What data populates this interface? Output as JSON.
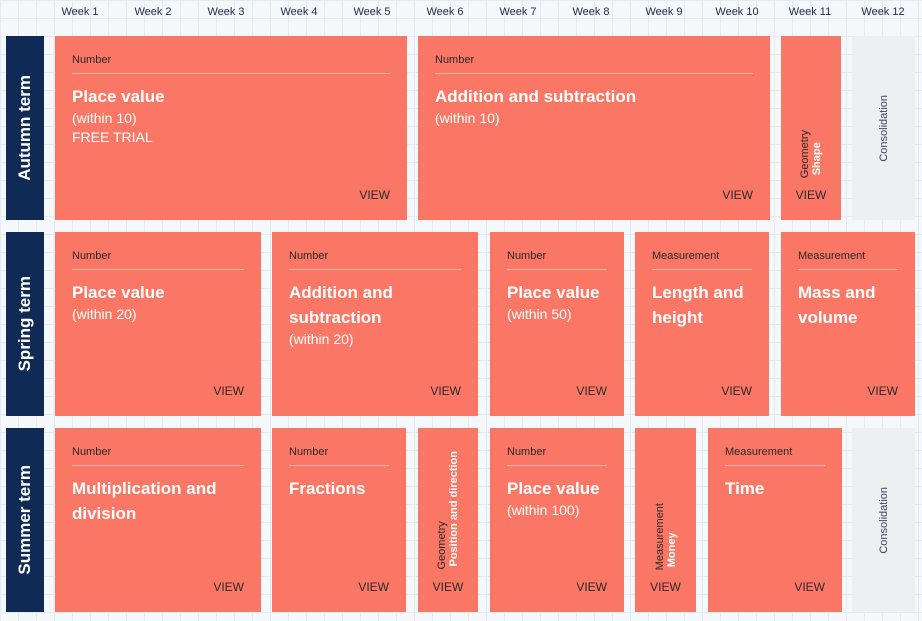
{
  "weeks": [
    "Week 1",
    "Week 2",
    "Week 3",
    "Week 4",
    "Week 5",
    "Week 6",
    "Week 7",
    "Week 8",
    "Week 9",
    "Week 10",
    "Week 11",
    "Week 12"
  ],
  "terms": {
    "autumn": "Autumn term",
    "spring": "Spring term",
    "summer": "Summer term"
  },
  "view_label": "VIEW",
  "consolidation_label": "Consolidation",
  "autumn": {
    "b1": {
      "category": "Number",
      "title": "Place value",
      "subtitle": "(within 10)",
      "note": "FREE TRIAL"
    },
    "b2": {
      "category": "Number",
      "title": "Addition and subtraction",
      "subtitle": "(within 10)"
    },
    "b3": {
      "category": "Geometry",
      "title": "Shape"
    }
  },
  "spring": {
    "b1": {
      "category": "Number",
      "title": "Place value",
      "subtitle": "(within 20)"
    },
    "b2": {
      "category": "Number",
      "title": "Addition and subtraction",
      "subtitle": "(within 20)"
    },
    "b3": {
      "category": "Number",
      "title": "Place value",
      "subtitle": "(within 50)"
    },
    "b4": {
      "category": "Measurement",
      "title": "Length and height"
    },
    "b5": {
      "category": "Measurement",
      "title": "Mass and volume"
    }
  },
  "summer": {
    "b1": {
      "category": "Number",
      "title": "Multiplication and division"
    },
    "b2": {
      "category": "Number",
      "title": "Fractions"
    },
    "b3": {
      "category": "Geometry",
      "title": "Position and direction"
    },
    "b4": {
      "category": "Number",
      "title": "Place value",
      "subtitle": "(within 100)"
    },
    "b5": {
      "category": "Measurement",
      "title": "Money"
    },
    "b6": {
      "category": "Measurement",
      "title": "Time"
    }
  }
}
